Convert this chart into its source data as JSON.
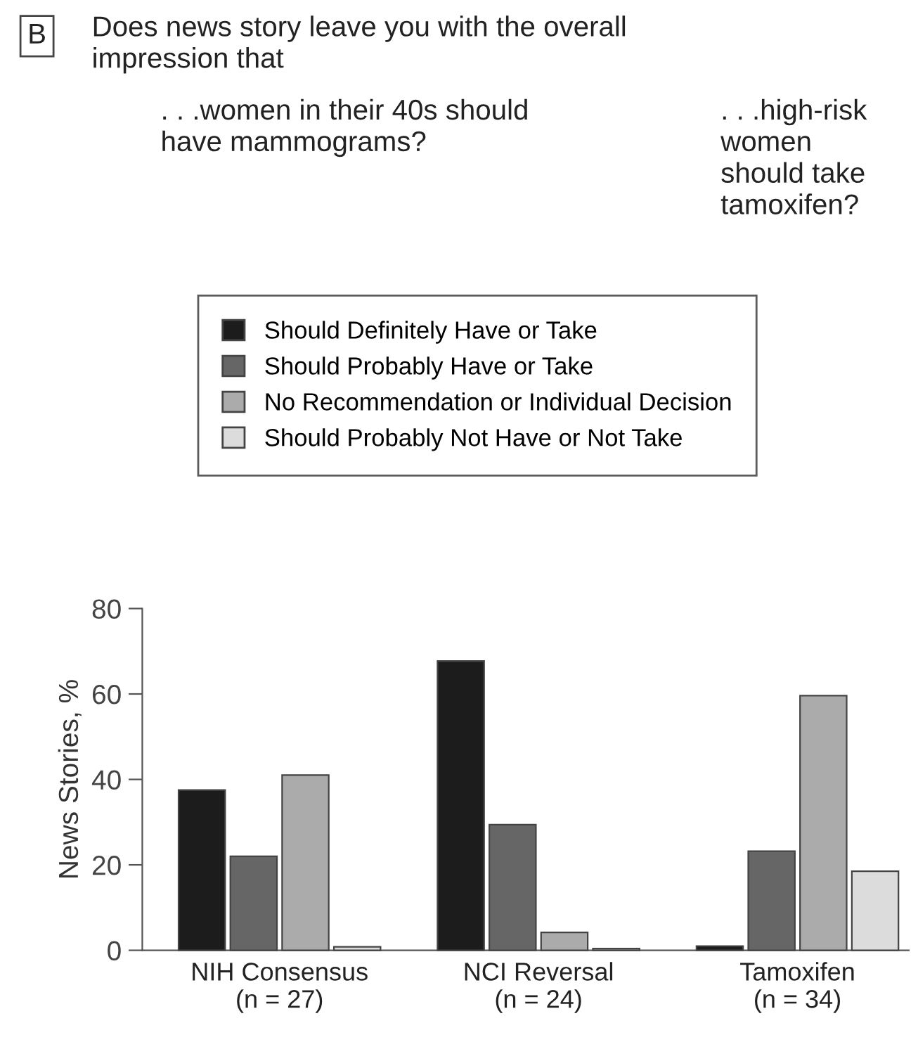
{
  "chart_data": {
    "type": "bar",
    "title": "Does news story leave you with the overall\nimpression that",
    "annotations": [
      "B",
      ". . .women in their 40s should\nhave mammograms?",
      ". . .high-risk\nwomen\nshould take\ntamoxifen?"
    ],
    "ylabel": "News Stories, %",
    "categories": [
      "NIH Consensus\n(n = 27)",
      "NCI Reversal\n(n = 24)",
      "Tamoxifen\n(n = 34)"
    ],
    "series": [
      {
        "name": "Should Definitely Have or Take",
        "color": "#1c1c1c",
        "values": [
          37.5,
          67.7,
          1.0
        ]
      },
      {
        "name": "Should Probably Have or Take",
        "color": "#666666",
        "values": [
          22,
          29.4,
          23.2
        ]
      },
      {
        "name": "No Recommendation or Individual Decision",
        "color": "#ababab",
        "values": [
          41,
          4.2,
          59.6
        ]
      },
      {
        "name": "Should Probably Not Have or Not Take",
        "color": "#dcdcdc",
        "values": [
          0.8,
          0.4,
          18.5
        ]
      }
    ],
    "ylim": [
      0,
      80
    ],
    "yticks": [
      0,
      20,
      40,
      60,
      80
    ],
    "legend": "top"
  }
}
